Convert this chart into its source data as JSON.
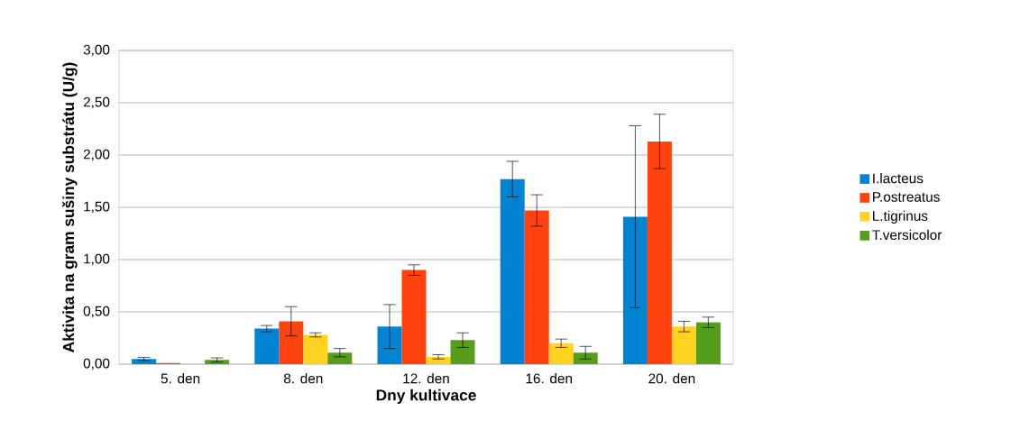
{
  "chart_data": {
    "type": "bar",
    "xlabel": "Dny kultivace",
    "ylabel": "Aktivita na gram sušiny substrátu (U/g)",
    "categories": [
      "5. den",
      "8. den",
      "12. den",
      "16. den",
      "20. den"
    ],
    "series": [
      {
        "name": "I.lacteus",
        "color": "#0084d1",
        "values": [
          0.05,
          0.34,
          0.36,
          1.77,
          1.41
        ],
        "errors": [
          0.015,
          0.03,
          0.21,
          0.17,
          0.87
        ]
      },
      {
        "name": "P.ostreatus",
        "color": "#ff420e",
        "values": [
          0.01,
          0.41,
          0.9,
          1.47,
          2.13
        ],
        "errors": [
          null,
          0.14,
          0.05,
          0.15,
          0.26
        ]
      },
      {
        "name": "L.tigrinus",
        "color": "#ffd320",
        "values": [
          0.0,
          0.28,
          0.07,
          0.2,
          0.36
        ],
        "errors": [
          null,
          0.02,
          0.02,
          0.04,
          0.05
        ]
      },
      {
        "name": "T.versicolor",
        "color": "#579d1c",
        "values": [
          0.04,
          0.11,
          0.23,
          0.11,
          0.4
        ],
        "errors": [
          0.02,
          0.04,
          0.07,
          0.06,
          0.05
        ]
      }
    ],
    "ylim": [
      0,
      3
    ],
    "yticks": [
      {
        "value": 0,
        "label": "0,00"
      },
      {
        "value": 0.5,
        "label": "0,50"
      },
      {
        "value": 1,
        "label": "1,00"
      },
      {
        "value": 1.5,
        "label": "1,50"
      },
      {
        "value": 2,
        "label": "2,00"
      },
      {
        "value": 2.5,
        "label": "2,50"
      },
      {
        "value": 3,
        "label": "3,00"
      }
    ],
    "grid": "y",
    "legend": "right"
  }
}
